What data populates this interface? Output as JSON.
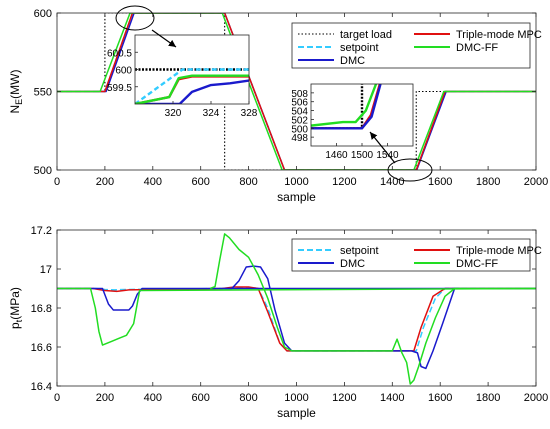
{
  "chart_data": [
    {
      "type": "line",
      "xlabel": "sample",
      "ylabel_main": "N",
      "ylabel_sub": "E",
      "ylabel_unit": "(MW)",
      "xlim": [
        0,
        2000
      ],
      "ylim": [
        500,
        600
      ],
      "xticks": [
        0,
        200,
        400,
        600,
        800,
        1000,
        1200,
        1400,
        1600,
        1800,
        2000
      ],
      "yticks": [
        500,
        550,
        600
      ],
      "legend_position": "top-right",
      "series": [
        {
          "name": "target load",
          "color": "#000000",
          "dash": "1.5,2",
          "width": 1.1,
          "x": [
            0,
            200,
            200,
            700,
            700,
            1500,
            1500,
            2000
          ],
          "y": [
            550,
            550,
            600,
            600,
            500,
            500,
            550,
            550
          ]
        },
        {
          "name": "setpoint",
          "color": "#33ccff",
          "dash": "6,3",
          "width": 1.5,
          "x": [
            0,
            200,
            315,
            700,
            950,
            1500,
            1620,
            2000
          ],
          "y": [
            550,
            550,
            600,
            600,
            500,
            500,
            550,
            550
          ]
        },
        {
          "name": "DMC",
          "color": "#1a1acc",
          "dash": "",
          "width": 1.5,
          "x": [
            0,
            205,
            322,
            700,
            950,
            1502,
            1625,
            2000
          ],
          "y": [
            550,
            550,
            600,
            600,
            500,
            500,
            550,
            550
          ]
        },
        {
          "name": "Triple-mode MPC",
          "color": "#e01010",
          "dash": "",
          "width": 1.5,
          "x": [
            0,
            200,
            315,
            700,
            950,
            1500,
            1620,
            2000
          ],
          "y": [
            550,
            550,
            600,
            600,
            500,
            500,
            550,
            550
          ]
        },
        {
          "name": "DMC-FF",
          "color": "#22dd22",
          "dash": "",
          "width": 1.5,
          "x": [
            0,
            180,
            305,
            690,
            940,
            1490,
            1615,
            2000
          ],
          "y": [
            550,
            550,
            600,
            600,
            500,
            500,
            550,
            550
          ]
        }
      ],
      "insets": [
        {
          "xlim": [
            316,
            328
          ],
          "ylim": [
            599,
            601
          ],
          "xticks": [
            320,
            324,
            328
          ],
          "xtick_labels": [
            "320",
            "324",
            "328"
          ],
          "yticks": [
            599.5,
            600,
            600.5
          ],
          "ytick_labels": [
            "599.5",
            "600",
            "600.5"
          ],
          "series": [
            {
              "name": "target load",
              "color": "#000000",
              "dash": "2,1.5",
              "width": 2.4,
              "x": [
                316,
                328
              ],
              "y": [
                600,
                600
              ]
            },
            {
              "name": "setpoint",
              "color": "#33ccff",
              "dash": "5,3",
              "width": 2.4,
              "x": [
                316,
                319,
                321,
                328
              ],
              "y": [
                599,
                599.6,
                600,
                600
              ]
            },
            {
              "name": "DMC",
              "color": "#1a1acc",
              "dash": "",
              "width": 2.4,
              "x": [
                316,
                320.7,
                322,
                324,
                326,
                328
              ],
              "y": [
                599,
                599,
                599.35,
                599.55,
                599.6,
                599.68
              ]
            },
            {
              "name": "Triple-mode MPC",
              "color": "#e01010",
              "dash": "",
              "width": 2.4,
              "x": [
                316,
                319.6,
                320.6,
                322,
                328
              ],
              "y": [
                599,
                599.2,
                599.72,
                599.8,
                599.8
              ]
            },
            {
              "name": "DMC-FF",
              "color": "#22dd22",
              "dash": "",
              "width": 2.4,
              "x": [
                316,
                319.6,
                320.6,
                322,
                328
              ],
              "y": [
                599,
                599.2,
                599.75,
                599.82,
                599.82
              ]
            }
          ]
        },
        {
          "xlim": [
            1420,
            1580
          ],
          "ylim": [
            496,
            510
          ],
          "xticks": [
            1460,
            1500,
            1540
          ],
          "xtick_labels": [
            "1460",
            "1500",
            "1540"
          ],
          "yticks": [
            498,
            500,
            502,
            504,
            506,
            508
          ],
          "ytick_labels": [
            "498",
            "500",
            "502",
            "504",
            "506",
            "508"
          ],
          "series": [
            {
              "name": "target load",
              "color": "#000000",
              "dash": "2,1.5",
              "width": 2.4,
              "x": [
                1420,
                1500,
                1500
              ],
              "y": [
                500,
                500,
                510
              ]
            },
            {
              "name": "DMC-FF",
              "color": "#22dd22",
              "dash": "",
              "width": 2.4,
              "x": [
                1420,
                1470,
                1490,
                1506,
                1522
              ],
              "y": [
                500.6,
                501.4,
                501.4,
                504,
                510
              ]
            },
            {
              "name": "Triple-mode MPC",
              "color": "#e01010",
              "dash": "",
              "width": 2.4,
              "x": [
                1420,
                1500,
                1514,
                1528
              ],
              "y": [
                500,
                500,
                503,
                510
              ]
            },
            {
              "name": "DMC",
              "color": "#1a1acc",
              "dash": "",
              "width": 2.4,
              "x": [
                1420,
                1500,
                1515,
                1529
              ],
              "y": [
                500,
                500,
                502.6,
                510
              ]
            }
          ]
        }
      ]
    },
    {
      "type": "line",
      "xlabel": "sample",
      "ylabel_main": "p",
      "ylabel_sub": "t",
      "ylabel_unit": "(MPa)",
      "xlim": [
        0,
        2000
      ],
      "ylim": [
        16.4,
        17.2
      ],
      "xticks": [
        0,
        200,
        400,
        600,
        800,
        1000,
        1200,
        1400,
        1600,
        1800,
        2000
      ],
      "yticks": [
        16.4,
        16.6,
        16.8,
        17,
        17.2
      ],
      "ytick_labels": [
        "16.4",
        "16.6",
        "16.8",
        "17",
        "17.2"
      ],
      "legend_position": "top-right",
      "series": [
        {
          "name": "setpoint",
          "color": "#33ccff",
          "dash": "6,3",
          "width": 1.5,
          "x": [
            0,
            160,
            200,
            240,
            290,
            700,
            740,
            800,
            840,
            880,
            930,
            960,
            1500,
            1530,
            1580,
            1620,
            2000
          ],
          "y": [
            16.9,
            16.9,
            16.895,
            16.893,
            16.895,
            16.9,
            16.905,
            16.905,
            16.9,
            16.8,
            16.62,
            16.58,
            16.58,
            16.7,
            16.85,
            16.9,
            16.9
          ]
        },
        {
          "name": "Triple-mode MPC",
          "color": "#e01010",
          "dash": "",
          "width": 1.5,
          "x": [
            0,
            150,
            200,
            250,
            300,
            690,
            740,
            800,
            840,
            880,
            930,
            960,
            1490,
            1520,
            1570,
            1620,
            2000
          ],
          "y": [
            16.9,
            16.9,
            16.89,
            16.885,
            16.893,
            16.9,
            16.908,
            16.908,
            16.9,
            16.78,
            16.62,
            16.58,
            16.58,
            16.7,
            16.86,
            16.9,
            16.9
          ]
        },
        {
          "name": "DMC",
          "color": "#1a1acc",
          "dash": "",
          "width": 1.5,
          "x": [
            0,
            190,
            215,
            235,
            300,
            315,
            335,
            355,
            2000
          ],
          "x2": [
            0
          ],
          "y": [
            16.9,
            16.9,
            16.82,
            16.79,
            16.79,
            16.81,
            16.87,
            16.9,
            16.9
          ]
        },
        {
          "name": "DMC",
          "color": "#1a1acc",
          "dash": "",
          "width": 1.5,
          "x": [
            700,
            730,
            760,
            790,
            820,
            850,
            880,
            910,
            950,
            980,
            1480,
            1505,
            1520,
            1540,
            1570,
            1610,
            1660,
            1680
          ],
          "y": [
            16.9,
            16.9,
            16.94,
            17.01,
            17.015,
            17.01,
            16.95,
            16.79,
            16.62,
            16.58,
            16.58,
            16.57,
            16.5,
            16.49,
            16.58,
            16.72,
            16.9,
            16.9
          ],
          "legend": false
        },
        {
          "name": "DMC-FF",
          "color": "#22dd22",
          "dash": "",
          "width": 1.5,
          "x": [
            0,
            140,
            160,
            175,
            190,
            230,
            260,
            290,
            320,
            345,
            2000
          ],
          "y": [
            16.9,
            16.9,
            16.8,
            16.68,
            16.61,
            16.63,
            16.645,
            16.66,
            16.72,
            16.89,
            16.9
          ],
          "legend": true
        },
        {
          "name": "DMC-FF",
          "color": "#22dd22",
          "dash": "",
          "width": 1.5,
          "x": [
            640,
            660,
            680,
            700,
            720,
            760,
            800,
            840,
            880,
            920,
            950,
            980,
            1400,
            1420,
            1440,
            1460,
            1475,
            1490,
            1510,
            1540,
            1580,
            1620,
            1660,
            2000
          ],
          "y": [
            16.9,
            16.91,
            17.05,
            17.18,
            17.16,
            17.1,
            17.06,
            16.97,
            16.85,
            16.7,
            16.6,
            16.58,
            16.58,
            16.64,
            16.57,
            16.52,
            16.41,
            16.43,
            16.5,
            16.62,
            16.75,
            16.86,
            16.9,
            16.9
          ],
          "legend": false
        }
      ]
    }
  ]
}
